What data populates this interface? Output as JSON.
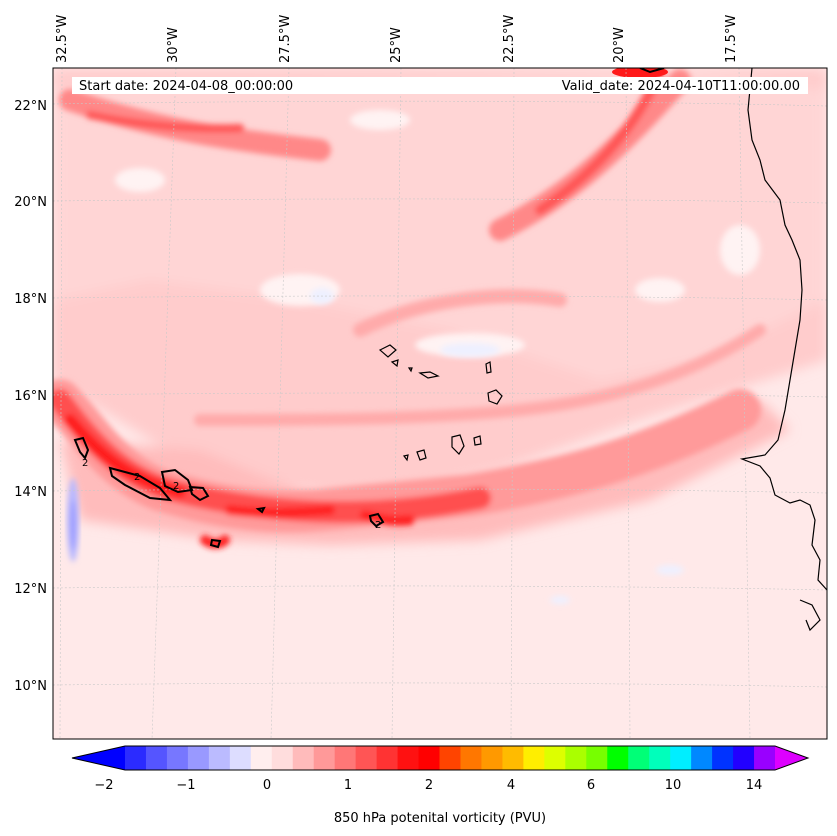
{
  "map": {
    "start_date": "Start date: 2024-04-08_00:00:00",
    "valid_date": "Valid_date: 2024-04-10T11:00:00.00",
    "lon_labels": [
      "32.5°W",
      "30°W",
      "27.5°W",
      "25°W",
      "22.5°W",
      "20°W",
      "17.5°W"
    ],
    "lat_labels": [
      "22°N",
      "20°N",
      "18°N",
      "16°N",
      "14°N",
      "12°N",
      "10°N"
    ],
    "contour_label": "2"
  },
  "colorbar": {
    "label": "850 hPa potenital vorticity (PVU)",
    "tick_labels": [
      "−2",
      "−1",
      "0",
      "1",
      "2",
      "4",
      "6",
      "10",
      "14"
    ],
    "colors": [
      "#0000ff",
      "#2b2bff",
      "#5555ff",
      "#7777ff",
      "#9999ff",
      "#bbbbff",
      "#ddddff",
      "#ffeeee",
      "#ffdddd",
      "#ffbbbb",
      "#ff9999",
      "#ff7777",
      "#ff5555",
      "#ff3333",
      "#ff1111",
      "#ff0000",
      "#ff4400",
      "#ff7700",
      "#ff9900",
      "#ffbb00",
      "#ffee00",
      "#ddff00",
      "#aaff00",
      "#77ff00",
      "#00ff00",
      "#00ff77",
      "#00ffbb",
      "#00eeff",
      "#0088ff",
      "#0033ff",
      "#2200ff",
      "#9900ff",
      "#dd00ff"
    ]
  }
}
